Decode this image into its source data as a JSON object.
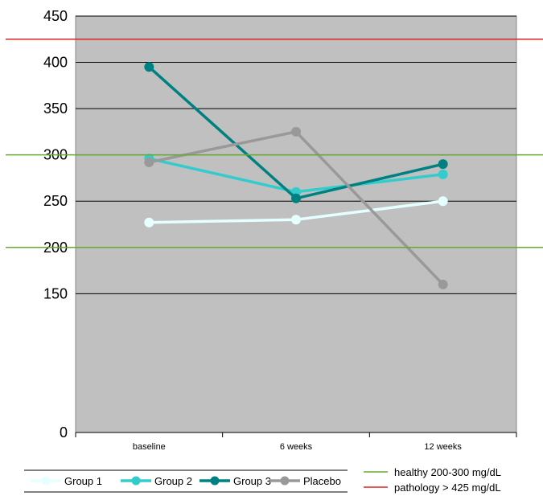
{
  "chart_data": {
    "type": "line",
    "categories": [
      "baseline",
      "6 weeks",
      "12 weeks"
    ],
    "ylim": [
      0,
      450
    ],
    "yticks": [
      0,
      150,
      200,
      250,
      300,
      350,
      400,
      450
    ],
    "grid": true,
    "series": [
      {
        "name": "Group 1",
        "color": "#e6ffff",
        "values": [
          227,
          230,
          250
        ]
      },
      {
        "name": "Group 2",
        "color": "#33cccc",
        "values": [
          296,
          260,
          279
        ]
      },
      {
        "name": "Group 3",
        "color": "#008080",
        "values": [
          395,
          253,
          290
        ]
      },
      {
        "name": "Placebo",
        "color": "#999999",
        "values": [
          292,
          325,
          160
        ]
      }
    ],
    "reference_lines": [
      {
        "label": "healthy  200-300 mg/dL",
        "color": "#66aa33",
        "values": [
          200,
          300
        ]
      },
      {
        "label": "pathology > 425 mg/dL",
        "color": "#dd2222",
        "values": [
          425
        ]
      }
    ],
    "legend_position": "bottom"
  }
}
